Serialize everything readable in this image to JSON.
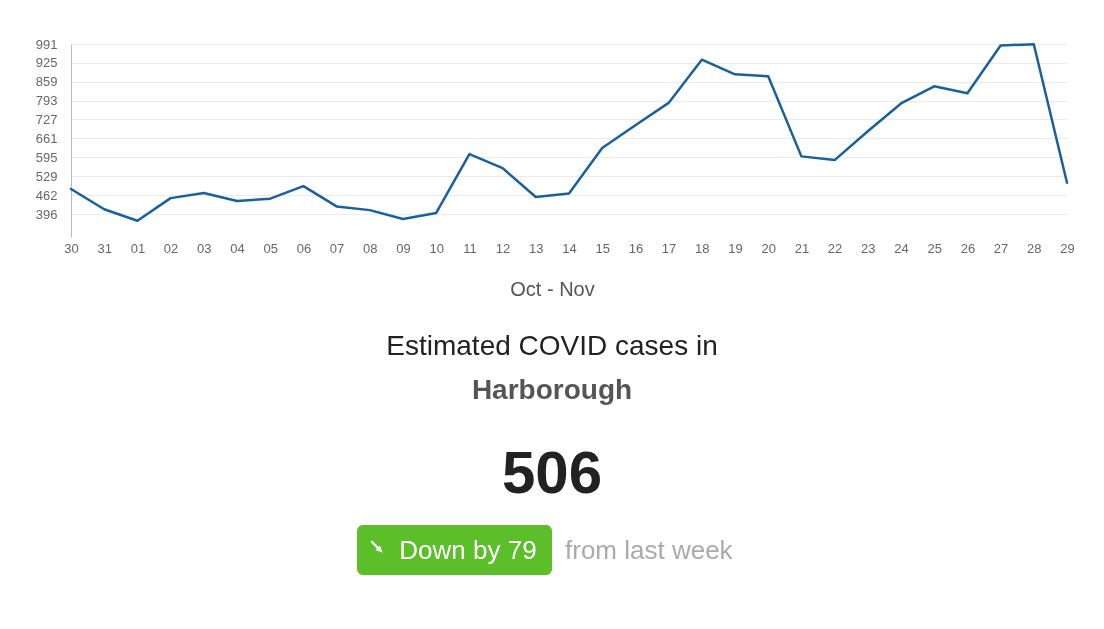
{
  "chart_data": {
    "type": "line",
    "title": "Estimated COVID cases in",
    "subtitle": "Harborough",
    "xlabel": "Oct - Nov",
    "categories": [
      "30",
      "31",
      "01",
      "02",
      "03",
      "04",
      "05",
      "06",
      "07",
      "08",
      "09",
      "10",
      "11",
      "12",
      "13",
      "14",
      "15",
      "16",
      "17",
      "18",
      "19",
      "20",
      "21",
      "22",
      "23",
      "24",
      "25",
      "26",
      "27",
      "28",
      "29"
    ],
    "series": [
      {
        "color": "#1b6199",
        "values": [
          484,
          413,
          373,
          452,
          470,
          442,
          450,
          494,
          423,
          410,
          379,
          400,
          606,
          557,
          456,
          468,
          627,
          707,
          785,
          936,
          885,
          878,
          598,
          585,
          686,
          783,
          843,
          819,
          986,
          990,
          506
        ]
      }
    ],
    "ylim": [
      316,
      991
    ],
    "yticks": [
      396,
      462,
      529,
      595,
      661,
      727,
      793,
      859,
      925,
      991
    ],
    "grid": "y",
    "annotations": [
      "506",
      "Down by 79",
      "from last week"
    ]
  }
}
